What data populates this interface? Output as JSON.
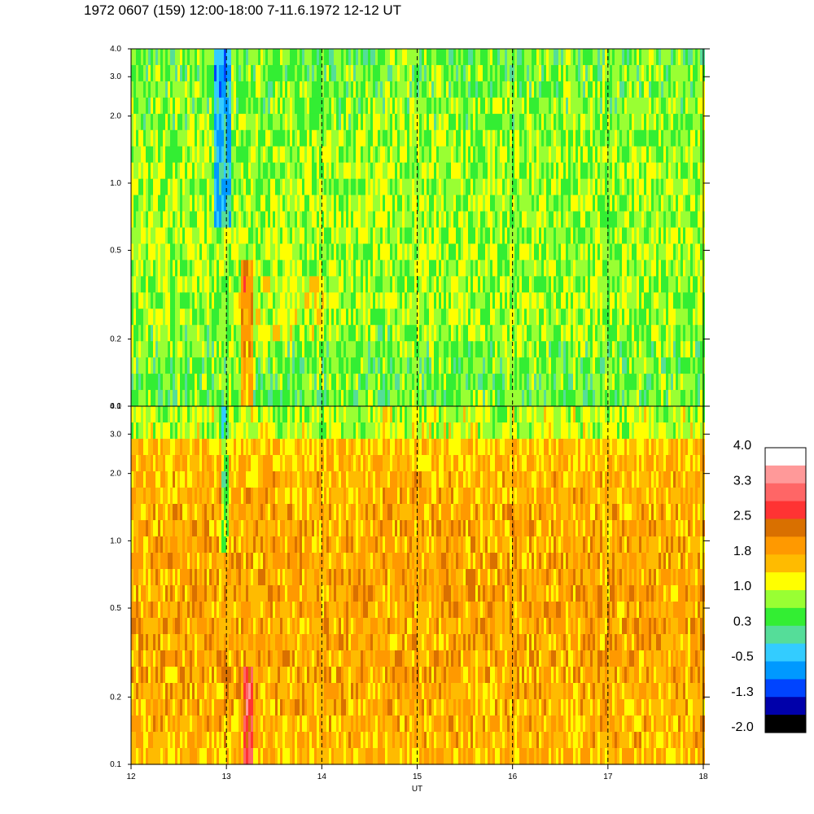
{
  "chart_data": {
    "type": "heatmap",
    "title": "1972 0607 (159) 12:00-18:00 7-11.6.1972  12-12 UT",
    "xlabel": "UT",
    "x_ticks": [
      "12",
      "13",
      "14",
      "15",
      "16",
      "17",
      "18"
    ],
    "xlim": [
      12,
      18
    ],
    "panels": [
      {
        "name": "top",
        "y_scale": "log",
        "ylim": [
          0.1,
          4.0
        ],
        "y_ticks": [
          "4.0",
          "3.0",
          "2.0",
          "1.0",
          "0.5",
          "0.2",
          "0.1"
        ],
        "dominant_levels": "0.3 to 1.0 (green / yellow-green)"
      },
      {
        "name": "bottom",
        "y_scale": "log",
        "ylim": [
          0.1,
          4.0
        ],
        "y_ticks": [
          "4.0",
          "3.0",
          "2.0",
          "1.0",
          "0.5",
          "0.2",
          "0.1"
        ],
        "dominant_levels": "1.0 to 2.5 (yellow / orange)"
      }
    ],
    "colorbar": {
      "labels": [
        "4.0",
        "3.3",
        "2.5",
        "1.8",
        "1.0",
        "0.3",
        "-0.5",
        "-1.3",
        "-2.0"
      ],
      "colors": [
        "#ffffff",
        "#ff9999",
        "#ff6666",
        "#ff3333",
        "#d97000",
        "#ff9900",
        "#ffbb00",
        "#ffff00",
        "#99ff33",
        "#33ee33",
        "#55dd99",
        "#33ccff",
        "#0099ff",
        "#0044ff",
        "#0000aa",
        "#000000"
      ]
    },
    "grid": "dashed vertical lines at each hour"
  }
}
